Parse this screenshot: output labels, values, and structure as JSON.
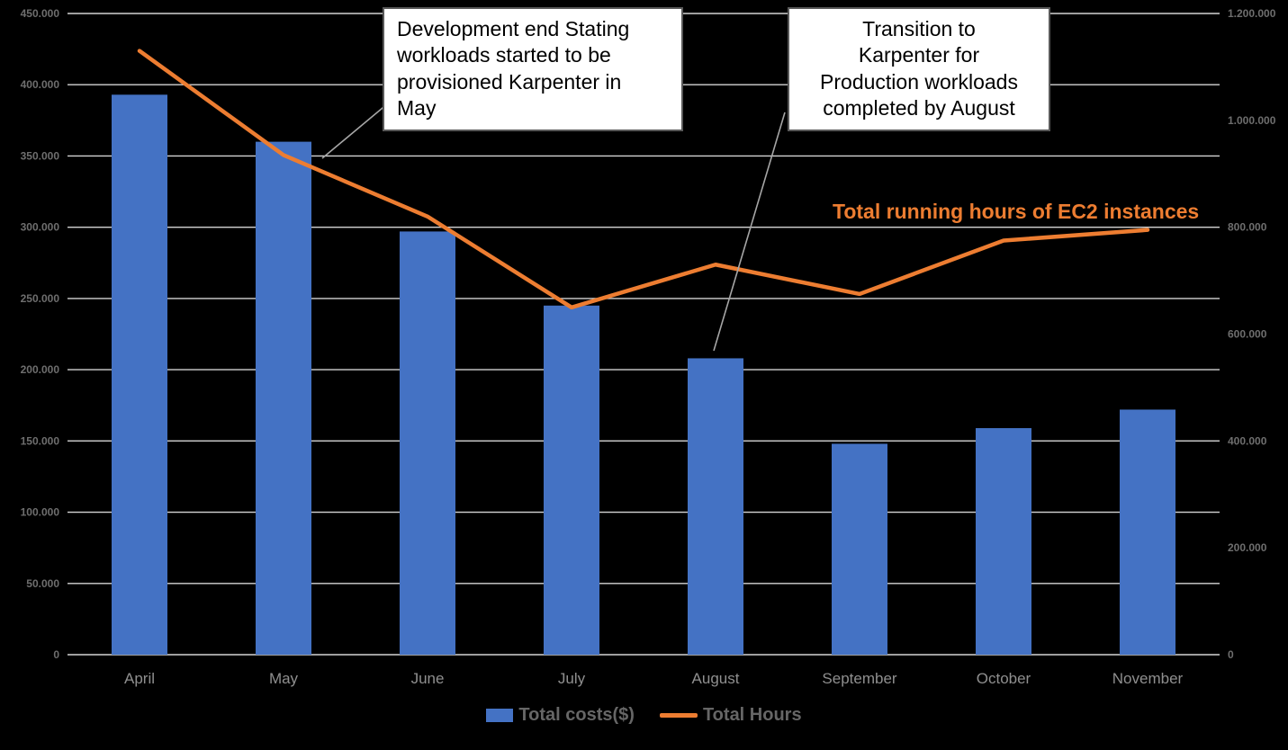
{
  "chart_data": {
    "type": "combo",
    "title": "",
    "categories": [
      "April",
      "May",
      "June",
      "July",
      "August",
      "September",
      "October",
      "November"
    ],
    "series": [
      {
        "name": "Total costs($)",
        "type": "bar",
        "axis": "left",
        "color": "#4472C4",
        "values": [
          393000,
          360000,
          297000,
          245000,
          208000,
          148000,
          159000,
          172000
        ]
      },
      {
        "name": "Total Hours",
        "type": "line",
        "axis": "right",
        "color": "#ED7D31",
        "values": [
          1130000,
          935000,
          820000,
          650000,
          730000,
          675000,
          775000,
          795000
        ]
      }
    ],
    "left_axis": {
      "min": 0,
      "max": 450000,
      "step": 50000,
      "tick_labels": [
        "0",
        "50.000",
        "100.000",
        "150.000",
        "200.000",
        "250.000",
        "300.000",
        "350.000",
        "400.000",
        "450.000"
      ]
    },
    "right_axis": {
      "min": 0,
      "max": 1200000,
      "step": 200000,
      "tick_labels": [
        "0",
        "200.000",
        "400.000",
        "600.000",
        "800.000",
        "1.000.000",
        "1.200.000"
      ]
    },
    "grid": "horizontal",
    "legend_position": "bottom",
    "line_label": "Total running hours of EC2 instances",
    "annotations": [
      {
        "text": "Development end Stating\nworkloads started to be\nprovisioned Karpenter in\nMay"
      },
      {
        "text": "Transition to\nKarpenter for\nProduction workloads\ncompleted by August"
      }
    ]
  }
}
